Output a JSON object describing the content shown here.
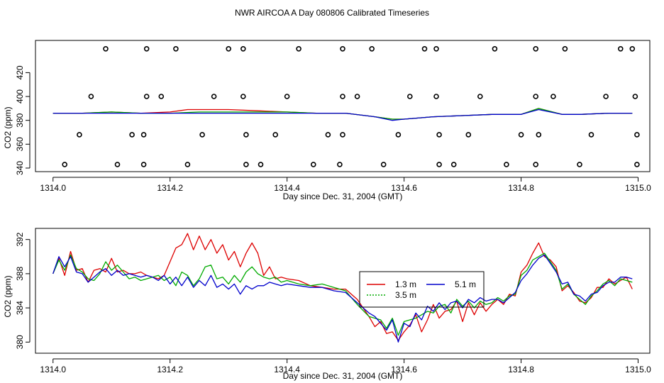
{
  "title": "NWR AIRCOA A  Day 080806  Calibrated Timeseries",
  "colors": {
    "red": "#dd0000",
    "green": "#00aa00",
    "blue": "#0000cc"
  },
  "chart_data": [
    {
      "type": "line",
      "id": "top",
      "xlabel": "Day since Dec. 31, 2004 (GMT)",
      "ylabel": "CO2 (ppm)",
      "xlim": [
        1313.97,
        1315.02
      ],
      "ylim": [
        337,
        447
      ],
      "xticks": [
        "1314.0",
        "1314.2",
        "1314.4",
        "1314.6",
        "1314.8",
        "1315.0"
      ],
      "xtick_values": [
        1314.0,
        1314.2,
        1314.4,
        1314.6,
        1314.8,
        1315.0
      ],
      "yticks": [
        "340",
        "360",
        "380",
        "400",
        "420"
      ],
      "ytick_values": [
        340,
        360,
        380,
        400,
        420
      ],
      "series": [
        {
          "name": "1.3 m",
          "color": "red",
          "x": [
            1314.0,
            1314.05,
            1314.1,
            1314.15,
            1314.2,
            1314.23,
            1314.27,
            1314.3,
            1314.35,
            1314.4,
            1314.45,
            1314.5,
            1314.55,
            1314.58,
            1314.6,
            1314.65,
            1314.7,
            1314.75,
            1314.8,
            1314.83,
            1314.87,
            1314.9,
            1314.95,
            1314.99
          ],
          "values": [
            386,
            386,
            387,
            386,
            387,
            389,
            389,
            389,
            388,
            387,
            386,
            386,
            383,
            381,
            381,
            383,
            384,
            385,
            385,
            390,
            385,
            385,
            386,
            386
          ]
        },
        {
          "name": "3.5 m",
          "color": "green",
          "x": [
            1314.0,
            1314.05,
            1314.1,
            1314.15,
            1314.2,
            1314.25,
            1314.3,
            1314.35,
            1314.4,
            1314.45,
            1314.5,
            1314.55,
            1314.58,
            1314.6,
            1314.65,
            1314.7,
            1314.75,
            1314.8,
            1314.83,
            1314.87,
            1314.9,
            1314.95,
            1314.99
          ],
          "values": [
            386,
            386,
            387,
            386,
            386,
            387,
            387,
            387,
            387,
            386,
            386,
            383,
            381,
            381,
            383,
            384,
            385,
            385,
            390,
            385,
            385,
            386,
            386
          ]
        },
        {
          "name": "5.1 m",
          "color": "blue",
          "x": [
            1314.0,
            1314.05,
            1314.1,
            1314.15,
            1314.2,
            1314.25,
            1314.3,
            1314.35,
            1314.4,
            1314.45,
            1314.5,
            1314.55,
            1314.58,
            1314.6,
            1314.65,
            1314.7,
            1314.75,
            1314.8,
            1314.83,
            1314.87,
            1314.9,
            1314.95,
            1314.99
          ],
          "values": [
            386,
            386,
            386,
            386,
            386,
            386,
            386,
            386,
            386,
            386,
            386,
            383,
            380,
            381,
            383,
            384,
            385,
            385,
            389,
            385,
            385,
            386,
            386
          ]
        }
      ],
      "scatter_groups": [
        {
          "name": "markers-440",
          "y": 440,
          "x": [
            1314.09,
            1314.16,
            1314.21,
            1314.3,
            1314.325,
            1314.42,
            1314.495,
            1314.545,
            1314.635,
            1314.655,
            1314.755,
            1314.825,
            1314.875,
            1314.97,
            1314.99
          ]
        },
        {
          "name": "markers-400",
          "y": 400,
          "x": [
            1314.065,
            1314.16,
            1314.185,
            1314.275,
            1314.325,
            1314.4,
            1314.495,
            1314.52,
            1314.61,
            1314.655,
            1314.73,
            1314.825,
            1314.855,
            1314.945,
            1314.995
          ]
        },
        {
          "name": "markers-368",
          "y": 368,
          "x": [
            1314.045,
            1314.135,
            1314.155,
            1314.255,
            1314.33,
            1314.38,
            1314.47,
            1314.495,
            1314.59,
            1314.66,
            1314.71,
            1314.8,
            1314.83,
            1314.92,
            1314.998
          ]
        },
        {
          "name": "markers-343",
          "y": 343,
          "x": [
            1314.02,
            1314.11,
            1314.155,
            1314.23,
            1314.33,
            1314.355,
            1314.445,
            1314.49,
            1314.565,
            1314.66,
            1314.685,
            1314.775,
            1314.825,
            1314.9,
            1314.998
          ]
        }
      ]
    },
    {
      "type": "line",
      "id": "bottom",
      "xlabel": "Day since Dec. 31, 2004 (GMT)",
      "ylabel": "CO2 (ppm)",
      "xlim": [
        1313.97,
        1315.02
      ],
      "ylim": [
        378.7,
        393.3
      ],
      "xticks": [
        "1314.0",
        "1314.2",
        "1314.4",
        "1314.6",
        "1314.8",
        "1315.0"
      ],
      "xtick_values": [
        1314.0,
        1314.2,
        1314.4,
        1314.6,
        1314.8,
        1315.0
      ],
      "yticks": [
        "380",
        "384",
        "388",
        "392"
      ],
      "ytick_values": [
        380,
        384,
        388,
        392
      ],
      "legend": {
        "position": "right-center",
        "entries": [
          "1.3 m",
          "3.5 m",
          "5.1 m"
        ]
      },
      "series": [
        {
          "name": "1.3 m",
          "color": "red",
          "x": [
            1314.0,
            1314.01,
            1314.02,
            1314.03,
            1314.04,
            1314.05,
            1314.06,
            1314.07,
            1314.08,
            1314.09,
            1314.1,
            1314.11,
            1314.12,
            1314.13,
            1314.14,
            1314.15,
            1314.16,
            1314.17,
            1314.18,
            1314.19,
            1314.2,
            1314.21,
            1314.22,
            1314.23,
            1314.24,
            1314.25,
            1314.26,
            1314.27,
            1314.28,
            1314.29,
            1314.3,
            1314.31,
            1314.32,
            1314.33,
            1314.34,
            1314.35,
            1314.36,
            1314.37,
            1314.38,
            1314.39,
            1314.4,
            1314.42,
            1314.44,
            1314.46,
            1314.48,
            1314.5,
            1314.52,
            1314.54,
            1314.55,
            1314.56,
            1314.57,
            1314.58,
            1314.59,
            1314.6,
            1314.61,
            1314.62,
            1314.63,
            1314.64,
            1314.65,
            1314.66,
            1314.67,
            1314.68,
            1314.69,
            1314.7,
            1314.71,
            1314.72,
            1314.73,
            1314.74,
            1314.75,
            1314.76,
            1314.77,
            1314.78,
            1314.79,
            1314.8,
            1314.81,
            1314.82,
            1314.83,
            1314.84,
            1314.85,
            1314.86,
            1314.87,
            1314.88,
            1314.89,
            1314.9,
            1314.91,
            1314.92,
            1314.93,
            1314.94,
            1314.95,
            1314.96,
            1314.97,
            1314.98,
            1314.99
          ],
          "values": [
            388.0,
            389.8,
            387.8,
            390.6,
            388.4,
            388.6,
            387.0,
            388.4,
            388.6,
            388.2,
            389.8,
            388.2,
            388.4,
            388.0,
            388.0,
            388.2,
            387.8,
            387.6,
            387.4,
            387.8,
            389.4,
            391.0,
            391.4,
            392.7,
            390.8,
            392.4,
            390.8,
            392.0,
            390.4,
            391.4,
            389.6,
            390.6,
            388.8,
            390.4,
            391.6,
            390.4,
            387.8,
            388.8,
            387.4,
            387.6,
            387.4,
            387.2,
            386.6,
            386.4,
            386.2,
            386.2,
            385.0,
            383.0,
            381.8,
            382.4,
            381.0,
            381.2,
            380.2,
            381.2,
            382.0,
            383.2,
            381.2,
            382.6,
            384.4,
            382.8,
            383.6,
            383.8,
            384.8,
            382.4,
            384.6,
            383.2,
            384.6,
            383.6,
            384.4,
            385.0,
            384.4,
            385.6,
            385.4,
            388.2,
            389.0,
            390.4,
            391.6,
            390.0,
            389.6,
            388.8,
            386.0,
            386.6,
            385.8,
            384.8,
            384.6,
            385.2,
            386.4,
            386.4,
            387.4,
            386.8,
            387.2,
            387.6,
            386.2
          ]
        },
        {
          "name": "3.5 m",
          "color": "green",
          "x": [
            1314.0,
            1314.01,
            1314.02,
            1314.03,
            1314.04,
            1314.05,
            1314.06,
            1314.07,
            1314.08,
            1314.09,
            1314.1,
            1314.11,
            1314.12,
            1314.13,
            1314.14,
            1314.15,
            1314.16,
            1314.17,
            1314.18,
            1314.19,
            1314.2,
            1314.21,
            1314.22,
            1314.23,
            1314.24,
            1314.25,
            1314.26,
            1314.27,
            1314.28,
            1314.29,
            1314.3,
            1314.31,
            1314.32,
            1314.33,
            1314.34,
            1314.35,
            1314.36,
            1314.37,
            1314.38,
            1314.39,
            1314.4,
            1314.42,
            1314.44,
            1314.46,
            1314.48,
            1314.5,
            1314.52,
            1314.54,
            1314.55,
            1314.56,
            1314.57,
            1314.58,
            1314.59,
            1314.6,
            1314.61,
            1314.62,
            1314.63,
            1314.64,
            1314.65,
            1314.66,
            1314.67,
            1314.68,
            1314.69,
            1314.7,
            1314.71,
            1314.72,
            1314.73,
            1314.74,
            1314.75,
            1314.76,
            1314.77,
            1314.78,
            1314.79,
            1314.8,
            1314.81,
            1314.82,
            1314.83,
            1314.84,
            1314.85,
            1314.86,
            1314.87,
            1314.88,
            1314.89,
            1314.9,
            1314.91,
            1314.92,
            1314.93,
            1314.94,
            1314.95,
            1314.96,
            1314.97,
            1314.98,
            1314.99
          ],
          "values": [
            388.0,
            389.6,
            388.4,
            390.2,
            388.6,
            388.2,
            387.4,
            387.2,
            388.0,
            389.4,
            388.4,
            389.0,
            388.2,
            387.4,
            387.6,
            387.2,
            387.4,
            387.6,
            387.8,
            387.2,
            387.6,
            386.6,
            388.2,
            387.8,
            386.6,
            387.4,
            388.8,
            389.0,
            387.4,
            387.6,
            386.8,
            387.8,
            387.0,
            388.2,
            388.8,
            388.0,
            387.6,
            387.4,
            387.6,
            387.0,
            387.2,
            386.8,
            386.6,
            386.8,
            386.4,
            386.0,
            384.4,
            383.0,
            382.8,
            382.6,
            381.6,
            382.8,
            380.8,
            382.4,
            382.6,
            382.8,
            383.2,
            383.6,
            383.4,
            384.2,
            384.4,
            383.4,
            385.0,
            384.2,
            384.8,
            384.0,
            384.8,
            384.4,
            384.6,
            385.2,
            384.8,
            385.4,
            385.6,
            387.8,
            388.4,
            389.6,
            390.0,
            390.4,
            389.4,
            388.4,
            386.2,
            386.8,
            385.6,
            385.0,
            384.4,
            385.4,
            386.0,
            386.8,
            387.2,
            386.6,
            387.4,
            387.2,
            387.0
          ]
        },
        {
          "name": "5.1 m",
          "color": "blue",
          "x": [
            1314.0,
            1314.01,
            1314.02,
            1314.03,
            1314.04,
            1314.05,
            1314.06,
            1314.07,
            1314.08,
            1314.09,
            1314.1,
            1314.11,
            1314.12,
            1314.13,
            1314.14,
            1314.15,
            1314.16,
            1314.17,
            1314.18,
            1314.19,
            1314.2,
            1314.21,
            1314.22,
            1314.23,
            1314.24,
            1314.25,
            1314.26,
            1314.27,
            1314.28,
            1314.29,
            1314.3,
            1314.31,
            1314.32,
            1314.33,
            1314.34,
            1314.35,
            1314.36,
            1314.37,
            1314.38,
            1314.39,
            1314.4,
            1314.42,
            1314.44,
            1314.46,
            1314.48,
            1314.5,
            1314.52,
            1314.54,
            1314.55,
            1314.56,
            1314.57,
            1314.58,
            1314.59,
            1314.6,
            1314.61,
            1314.62,
            1314.63,
            1314.64,
            1314.65,
            1314.66,
            1314.67,
            1314.68,
            1314.69,
            1314.7,
            1314.71,
            1314.72,
            1314.73,
            1314.74,
            1314.75,
            1314.76,
            1314.77,
            1314.78,
            1314.79,
            1314.8,
            1314.81,
            1314.82,
            1314.83,
            1314.84,
            1314.85,
            1314.86,
            1314.87,
            1314.88,
            1314.89,
            1314.9,
            1314.91,
            1314.92,
            1314.93,
            1314.94,
            1314.95,
            1314.96,
            1314.97,
            1314.98,
            1314.99
          ],
          "values": [
            388.0,
            390.0,
            388.8,
            390.0,
            388.2,
            388.0,
            387.0,
            387.6,
            388.2,
            388.6,
            387.8,
            388.4,
            387.8,
            388.0,
            387.8,
            387.6,
            387.8,
            387.6,
            387.2,
            387.8,
            386.8,
            387.6,
            386.6,
            387.6,
            386.4,
            387.2,
            386.6,
            387.8,
            386.4,
            386.8,
            386.2,
            386.8,
            385.6,
            386.6,
            386.2,
            386.6,
            386.6,
            387.0,
            386.8,
            386.6,
            386.8,
            386.6,
            386.4,
            386.4,
            386.0,
            385.8,
            384.6,
            383.4,
            383.0,
            382.2,
            381.4,
            382.6,
            380.0,
            382.2,
            381.8,
            383.4,
            382.6,
            384.2,
            383.6,
            384.6,
            383.8,
            384.6,
            384.8,
            384.0,
            385.0,
            384.6,
            385.2,
            384.8,
            385.0,
            385.0,
            384.6,
            385.2,
            385.8,
            387.2,
            388.0,
            389.0,
            389.8,
            390.2,
            389.2,
            388.2,
            386.8,
            387.0,
            385.6,
            385.4,
            384.8,
            385.6,
            385.8,
            386.6,
            387.0,
            387.0,
            387.6,
            387.6,
            387.4
          ]
        }
      ]
    }
  ]
}
